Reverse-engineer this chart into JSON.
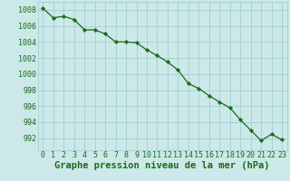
{
  "x": [
    0,
    1,
    2,
    3,
    4,
    5,
    6,
    7,
    8,
    9,
    10,
    11,
    12,
    13,
    14,
    15,
    16,
    17,
    18,
    19,
    20,
    21,
    22,
    23
  ],
  "y": [
    1008.2,
    1007.0,
    1007.2,
    1006.8,
    1005.5,
    1005.5,
    1005.0,
    1004.0,
    1004.0,
    1003.9,
    1003.0,
    1002.3,
    1001.5,
    1000.5,
    998.8,
    998.2,
    997.3,
    996.5,
    995.8,
    994.3,
    993.0,
    991.7,
    992.5,
    991.8
  ],
  "line_color": "#1a6b1a",
  "marker_color": "#1a6b1a",
  "bg_color": "#cce8e8",
  "grid_color": "#99cccc",
  "xlabel": "Graphe pression niveau de la mer (hPa)",
  "xlabel_color": "#1a6b1a",
  "ylabel_ticks": [
    992,
    994,
    996,
    998,
    1000,
    1002,
    1004,
    1006,
    1008
  ],
  "xlim": [
    -0.5,
    23.5
  ],
  "ylim": [
    990.5,
    1009.0
  ],
  "tick_color": "#1a6b1a",
  "tick_fontsize": 6,
  "xlabel_fontsize": 7.5
}
